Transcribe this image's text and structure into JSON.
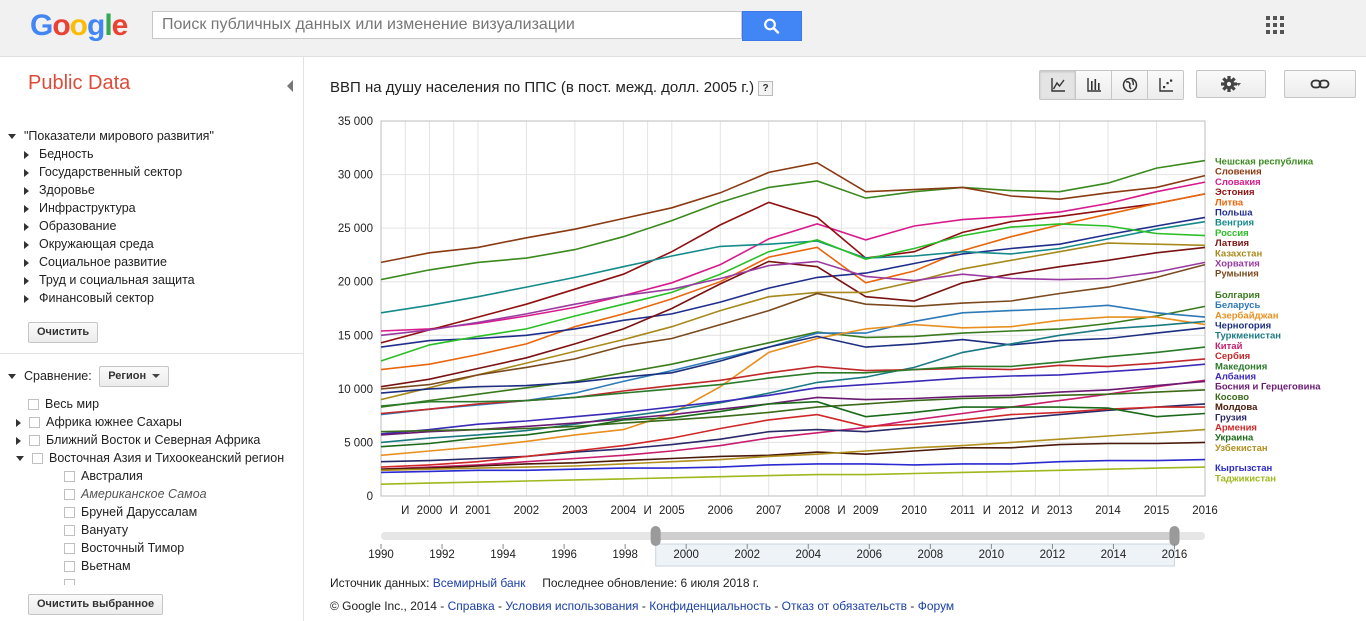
{
  "header": {
    "logo_letters": [
      {
        "ch": "G",
        "color": "#4285f4"
      },
      {
        "ch": "o",
        "color": "#ea4335"
      },
      {
        "ch": "o",
        "color": "#fbbc05"
      },
      {
        "ch": "g",
        "color": "#4285f4"
      },
      {
        "ch": "l",
        "color": "#34a853"
      },
      {
        "ch": "e",
        "color": "#ea4335"
      }
    ],
    "search_placeholder": "Поиск публичных данных или изменение визуализации",
    "search_value": ""
  },
  "sidebar": {
    "title": "Public Data",
    "dataset": "\"Показатели мирового развития\"",
    "categories": [
      "Бедность",
      "Государственный сектор",
      "Здоровье",
      "Инфраструктура",
      "Образование",
      "Окружающая среда",
      "Социальное развитие",
      "Труд и социальная защита",
      "Финансовый сектор"
    ],
    "clear_label": "Очистить",
    "compare_label": "Сравнение:",
    "compare_value": "Регион",
    "regions": [
      {
        "label": "Весь мир",
        "level": 0,
        "arrow": "none"
      },
      {
        "label": "Африка южнее Сахары",
        "level": 0,
        "arrow": "right"
      },
      {
        "label": "Ближний Восток и Северная Африка",
        "level": 0,
        "arrow": "right"
      },
      {
        "label": "Восточная Азия и Тихоокеанский регион",
        "level": 0,
        "arrow": "down"
      },
      {
        "label": "Австралия",
        "level": 1,
        "arrow": "none"
      },
      {
        "label": "Американское Самоа",
        "level": 1,
        "arrow": "none",
        "italic": true
      },
      {
        "label": "Бруней Даруссалам",
        "level": 1,
        "arrow": "none"
      },
      {
        "label": "Вануату",
        "level": 1,
        "arrow": "none"
      },
      {
        "label": "Восточный Тимор",
        "level": 1,
        "arrow": "none"
      },
      {
        "label": "Вьетнам",
        "level": 1,
        "arrow": "none"
      }
    ],
    "clear_selected_label": "Очистить выбранное"
  },
  "main": {
    "title": "ВВП на душу населения по ППС (в пост. межд. долл. 2005 г.)",
    "help_label": "?",
    "viz_buttons": [
      {
        "icon": "line-chart-icon",
        "active": true
      },
      {
        "icon": "bar-chart-icon",
        "active": false
      },
      {
        "icon": "map-icon",
        "active": false
      },
      {
        "icon": "bubble-chart-icon",
        "active": false
      }
    ],
    "source_label": "Источник данных:",
    "source_link": "Всемирный банк",
    "updated_label": "Последнее обновление: 6 июля 2018 г.",
    "footer": {
      "copyright": "© Google Inc., 2014",
      "links": [
        "Справка",
        "Условия использования",
        "Конфиденциальность",
        "Отказ от обязательств",
        "Форум"
      ]
    }
  },
  "chart_data": {
    "type": "line",
    "title": "ВВП на душу населения по ППС (в пост. межд. долл. 2005 г.)",
    "x": [
      1999,
      2000,
      2001,
      2002,
      2003,
      2004,
      2005,
      2006,
      2007,
      2008,
      2009,
      2010,
      2011,
      2012,
      2013,
      2014,
      2015,
      2016
    ],
    "x_tick_labels": [
      "И",
      "2000",
      "И",
      "2001",
      "2002",
      "2003",
      "2004",
      "И",
      "2005",
      "2006",
      "2007",
      "2008",
      "И",
      "2009",
      "2010",
      "2011",
      "И",
      "2012",
      "И",
      "2013",
      "2014",
      "2015",
      "2016"
    ],
    "x_ticks": [
      {
        "label": "И",
        "x": 1999.5
      },
      {
        "label": "2000",
        "x": 2000
      },
      {
        "label": "И",
        "x": 2000.5
      },
      {
        "label": "2001",
        "x": 2001
      },
      {
        "label": "2002",
        "x": 2002
      },
      {
        "label": "2003",
        "x": 2003
      },
      {
        "label": "2004",
        "x": 2004
      },
      {
        "label": "И",
        "x": 2004.5
      },
      {
        "label": "2005",
        "x": 2005
      },
      {
        "label": "2006",
        "x": 2006
      },
      {
        "label": "2007",
        "x": 2007
      },
      {
        "label": "2008",
        "x": 2008
      },
      {
        "label": "И",
        "x": 2008.5
      },
      {
        "label": "2009",
        "x": 2009
      },
      {
        "label": "2010",
        "x": 2010
      },
      {
        "label": "2011",
        "x": 2011
      },
      {
        "label": "И",
        "x": 2011.5
      },
      {
        "label": "2012",
        "x": 2012
      },
      {
        "label": "И",
        "x": 2012.5
      },
      {
        "label": "2013",
        "x": 2013
      },
      {
        "label": "2014",
        "x": 2014
      },
      {
        "label": "2015",
        "x": 2015
      },
      {
        "label": "2016",
        "x": 2016
      }
    ],
    "ylim": [
      0,
      35000
    ],
    "y_ticks": [
      0,
      5000,
      10000,
      15000,
      20000,
      25000,
      30000,
      35000
    ],
    "y_tick_labels": [
      "0",
      "5 000",
      "10 000",
      "15 000",
      "20 000",
      "25 000",
      "30 000",
      "35 000"
    ],
    "grid": true,
    "legend_position": "right",
    "series": [
      {
        "name": "Чешская республика",
        "color": "#3a8a1e",
        "values": [
          20200,
          21100,
          21800,
          22200,
          23000,
          24200,
          25700,
          27400,
          28800,
          29400,
          27800,
          28400,
          28800,
          28500,
          28400,
          29200,
          30600,
          31300
        ]
      },
      {
        "name": "Словения",
        "color": "#8a3a12",
        "values": [
          21800,
          22700,
          23200,
          24100,
          24900,
          25900,
          26900,
          28300,
          30200,
          31100,
          28400,
          28600,
          28800,
          28000,
          27700,
          28300,
          28800,
          29900
        ]
      },
      {
        "name": "Словакия",
        "color": "#d81b8c",
        "values": [
          15400,
          15600,
          16100,
          16800,
          17600,
          18700,
          19900,
          21600,
          24000,
          25400,
          23900,
          25200,
          25800,
          26100,
          26500,
          27300,
          28400,
          29300
        ]
      },
      {
        "name": "Эстония",
        "color": "#8e1010",
        "values": [
          14300,
          15500,
          16700,
          17900,
          19300,
          20700,
          22800,
          25300,
          27400,
          26000,
          22200,
          22800,
          24600,
          25600,
          26100,
          26700,
          27300,
          28200
        ]
      },
      {
        "name": "Литва",
        "color": "#e8660c",
        "values": [
          11800,
          12300,
          13200,
          14200,
          15800,
          17000,
          18400,
          20000,
          22300,
          23200,
          19900,
          21000,
          22900,
          24200,
          25300,
          26300,
          27300,
          28200
        ]
      },
      {
        "name": "Польша",
        "color": "#1f2e8c",
        "values": [
          13900,
          14500,
          14700,
          15000,
          15600,
          16400,
          17000,
          18100,
          19400,
          20400,
          20800,
          21700,
          22600,
          23100,
          23500,
          24400,
          25200,
          26000
        ]
      },
      {
        "name": "Венгрия",
        "color": "#158a8a",
        "values": [
          17100,
          17800,
          18600,
          19500,
          20400,
          21400,
          22400,
          23300,
          23500,
          23800,
          22200,
          22400,
          22800,
          22600,
          23100,
          24000,
          24900,
          25600
        ]
      },
      {
        "name": "Россия",
        "color": "#2bbf27",
        "values": [
          12600,
          14100,
          14900,
          15600,
          16800,
          17900,
          19000,
          20700,
          22800,
          23900,
          22100,
          23100,
          24300,
          25100,
          25400,
          25200,
          24500,
          24300
        ]
      },
      {
        "name": "Латвия",
        "color": "#7a1212",
        "values": [
          10200,
          10900,
          11900,
          12900,
          14200,
          15600,
          17500,
          19800,
          21900,
          21400,
          18600,
          18200,
          19900,
          20700,
          21400,
          22000,
          22700,
          23200
        ]
      },
      {
        "name": "Казахстан",
        "color": "#a88a1c",
        "values": [
          9000,
          10100,
          11300,
          12400,
          13500,
          14600,
          15800,
          17300,
          18600,
          19000,
          19000,
          20000,
          21200,
          22000,
          22800,
          23600,
          23500,
          23400
        ]
      },
      {
        "name": "Хорватия",
        "color": "#9a3aa0",
        "values": [
          15000,
          15500,
          16200,
          17000,
          17900,
          18700,
          19300,
          20300,
          21500,
          21900,
          20500,
          20100,
          20700,
          20300,
          20200,
          20300,
          20900,
          21800
        ]
      },
      {
        "name": "Румыния",
        "color": "#7a4a1e",
        "values": [
          10000,
          10400,
          11300,
          12000,
          12800,
          14000,
          14700,
          16000,
          17300,
          18900,
          17900,
          17700,
          18000,
          18200,
          18900,
          19500,
          20400,
          21600
        ]
      },
      {
        "name": "Болгария",
        "color": "#3a7a1e",
        "values": [
          8300,
          8900,
          9500,
          10100,
          10700,
          11500,
          12300,
          13300,
          14300,
          15300,
          14800,
          14900,
          15200,
          15400,
          15600,
          16100,
          16800,
          17700
        ]
      },
      {
        "name": "Беларусь",
        "color": "#2e7ab8",
        "values": [
          7600,
          8100,
          8500,
          8900,
          9600,
          10700,
          11700,
          12800,
          13900,
          15200,
          15200,
          16300,
          17100,
          17300,
          17500,
          17800,
          17100,
          16700
        ]
      },
      {
        "name": "Азербайджан",
        "color": "#e8901e",
        "values": [
          3800,
          4200,
          4600,
          5100,
          5700,
          6200,
          7700,
          10200,
          13400,
          14700,
          15600,
          16000,
          15700,
          15800,
          16400,
          16700,
          16700,
          16000
        ]
      },
      {
        "name": "Черногория",
        "color": "#1c2e80",
        "values": [
          9600,
          10000,
          10200,
          10300,
          10600,
          11100,
          11500,
          12600,
          13900,
          14900,
          13900,
          14200,
          14600,
          14100,
          14500,
          14700,
          15200,
          15700
        ]
      },
      {
        "name": "Туркменистан",
        "color": "#1a7a82",
        "values": [
          5000,
          5400,
          5700,
          6100,
          6700,
          7400,
          8000,
          8700,
          9600,
          10600,
          11100,
          12000,
          13400,
          14200,
          15000,
          15600,
          15900,
          16300
        ]
      },
      {
        "name": "Китай",
        "color": "#c81e6e",
        "values": [
          2500,
          2700,
          2900,
          3200,
          3500,
          3800,
          4200,
          4700,
          5400,
          5900,
          6400,
          7100,
          7700,
          8300,
          8900,
          9500,
          10200,
          10800
        ]
      },
      {
        "name": "Сербия",
        "color": "#c0282a",
        "values": [
          7700,
          8100,
          8600,
          8900,
          9200,
          9800,
          10300,
          10800,
          11500,
          12100,
          11700,
          11800,
          11900,
          11800,
          12200,
          12100,
          12400,
          12800
        ]
      },
      {
        "name": "Македония",
        "color": "#2a7a2a",
        "values": [
          8400,
          8800,
          8800,
          8900,
          9200,
          9600,
          10000,
          10400,
          11000,
          11500,
          11500,
          11800,
          12100,
          12100,
          12500,
          13000,
          13400,
          13900
        ]
      },
      {
        "name": "Албания",
        "color": "#3a2ab8",
        "values": [
          5800,
          6200,
          6700,
          7000,
          7400,
          7800,
          8300,
          8800,
          9400,
          10100,
          10400,
          10700,
          11000,
          11200,
          11300,
          11600,
          11900,
          12300
        ]
      },
      {
        "name": "Босния и Герцеговина",
        "color": "#6a1a72",
        "values": [
          5700,
          6000,
          6200,
          6500,
          6800,
          7200,
          7600,
          8100,
          8600,
          9200,
          9000,
          9100,
          9300,
          9400,
          9700,
          9900,
          10300,
          10700
        ]
      },
      {
        "name": "Косово",
        "color": "#3a6a1a",
        "values": [
          6000,
          6100,
          6200,
          6300,
          6500,
          6800,
          7100,
          7400,
          7800,
          8300,
          8600,
          8900,
          9100,
          9200,
          9400,
          9500,
          9700,
          9900
        ]
      },
      {
        "name": "Молдова",
        "color": "#4a1a0a",
        "values": [
          2500,
          2600,
          2800,
          3000,
          3100,
          3300,
          3500,
          3700,
          3800,
          4100,
          3900,
          4200,
          4500,
          4500,
          4800,
          4900,
          4900,
          5000
        ]
      },
      {
        "name": "Грузия",
        "color": "#2a2a6a",
        "values": [
          3200,
          3300,
          3500,
          3700,
          4100,
          4400,
          4800,
          5300,
          6000,
          6200,
          6000,
          6400,
          6800,
          7200,
          7600,
          8000,
          8300,
          8600
        ]
      },
      {
        "name": "Армения",
        "color": "#d02828",
        "values": [
          2700,
          2900,
          3200,
          3700,
          4200,
          4700,
          5400,
          6300,
          7100,
          7600,
          6500,
          6700,
          7100,
          7600,
          7800,
          8100,
          8300,
          8300
        ]
      },
      {
        "name": "Украина",
        "color": "#1a6a1a",
        "values": [
          4600,
          4900,
          5400,
          5700,
          6300,
          7100,
          7300,
          7900,
          8600,
          8800,
          7400,
          7800,
          8300,
          8300,
          8300,
          8200,
          7400,
          7700
        ]
      },
      {
        "name": "Узбекистан",
        "color": "#b0901e",
        "values": [
          2400,
          2500,
          2600,
          2700,
          2800,
          3000,
          3200,
          3400,
          3700,
          3900,
          4200,
          4500,
          4700,
          5000,
          5300,
          5600,
          5900,
          6200
        ]
      },
      {
        "name": "Кыргызстан",
        "color": "#2a2ad0",
        "values": [
          2200,
          2300,
          2400,
          2400,
          2500,
          2600,
          2600,
          2700,
          2900,
          3000,
          3000,
          2900,
          3000,
          3000,
          3200,
          3300,
          3300,
          3400
        ]
      },
      {
        "name": "Таджикистан",
        "color": "#a0b81e",
        "values": [
          1100,
          1200,
          1300,
          1400,
          1500,
          1600,
          1700,
          1800,
          1900,
          2000,
          2000,
          2100,
          2200,
          2300,
          2400,
          2500,
          2600,
          2700
        ]
      }
    ],
    "slider": {
      "labels": [
        "1990",
        "1992",
        "1994",
        "1996",
        "1998",
        "2000",
        "2002",
        "2004",
        "2006",
        "2008",
        "2010",
        "2012",
        "2014",
        "2016"
      ],
      "range": [
        1990,
        2017
      ],
      "selected_range": [
        1999,
        2016
      ]
    }
  }
}
